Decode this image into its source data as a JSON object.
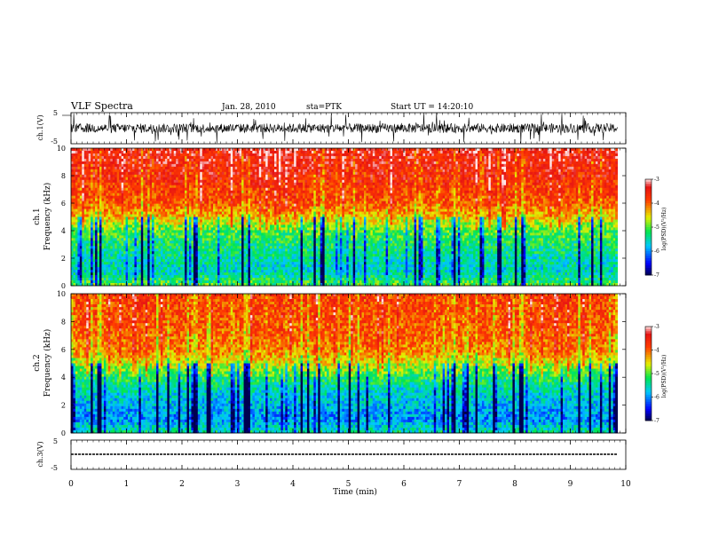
{
  "header": {
    "title": "VLF Spectra",
    "date": "Jan. 28, 2010",
    "station": "sta=PTK",
    "start_time": "Start UT = 14:20:10"
  },
  "chart_data": [
    {
      "type": "line",
      "name": "ch1-waveform",
      "ylabel": "ch.1(V)",
      "ylim": [
        -5,
        5
      ],
      "yticks": [
        "5",
        "-5"
      ],
      "xlim": [
        0,
        10
      ],
      "description_values": {
        "baseline": 0,
        "typical_amplitude": 1.5,
        "peak_amplitude": 5
      }
    },
    {
      "type": "heatmap",
      "name": "ch1-spectrogram",
      "ylabel": "ch.1\nFrequency (kHz)",
      "ylabel_lines": [
        "ch.1",
        "Frequency (kHz)"
      ],
      "ylim": [
        0,
        10
      ],
      "yticks": [
        "0",
        "2",
        "4",
        "6",
        "8",
        "10"
      ],
      "xlim": [
        0,
        9.85
      ],
      "colorbar": {
        "label": "log(PSD)(V²/Hz)",
        "min": -7,
        "max": -3,
        "ticks": [
          "-3",
          "-4",
          "-5",
          "-6",
          "-7"
        ]
      },
      "profile_log_psd": {
        "freq_khz": [
          0,
          1,
          2,
          3,
          4,
          5,
          6,
          8,
          10
        ],
        "values": [
          -5.0,
          -5.6,
          -5.5,
          -5.3,
          -5.0,
          -4.4,
          -3.9,
          -3.6,
          -3.4
        ]
      }
    },
    {
      "type": "heatmap",
      "name": "ch2-spectrogram",
      "ylabel": "ch.2\nFrequency (kHz)",
      "ylabel_lines": [
        "ch.2",
        "Frequency (kHz)"
      ],
      "ylim": [
        0,
        10
      ],
      "yticks": [
        "0",
        "2",
        "4",
        "6",
        "8",
        "10"
      ],
      "xlim": [
        0,
        9.85
      ],
      "colorbar": {
        "label": "log(PSD)(V²/Hz)",
        "min": -7,
        "max": -3,
        "ticks": [
          "-3",
          "-4",
          "-5",
          "-6",
          "-7"
        ]
      },
      "profile_log_psd": {
        "freq_khz": [
          0,
          1,
          2,
          3,
          4,
          5,
          6,
          8,
          10
        ],
        "values": [
          -5.4,
          -6.0,
          -5.8,
          -5.6,
          -5.2,
          -4.6,
          -4.1,
          -3.9,
          -3.8
        ]
      }
    },
    {
      "type": "line",
      "name": "ch3-waveform",
      "ylabel": "ch.3(V)",
      "ylim": [
        -5,
        5
      ],
      "yticks": [
        "5",
        "-5"
      ],
      "xlim": [
        0,
        9.85
      ],
      "constant_value": -1.8
    }
  ],
  "xaxis": {
    "label": "Time (min)",
    "range": [
      0,
      10
    ],
    "ticks": [
      "0",
      "1",
      "2",
      "3",
      "4",
      "5",
      "6",
      "7",
      "8",
      "9",
      "10"
    ]
  }
}
